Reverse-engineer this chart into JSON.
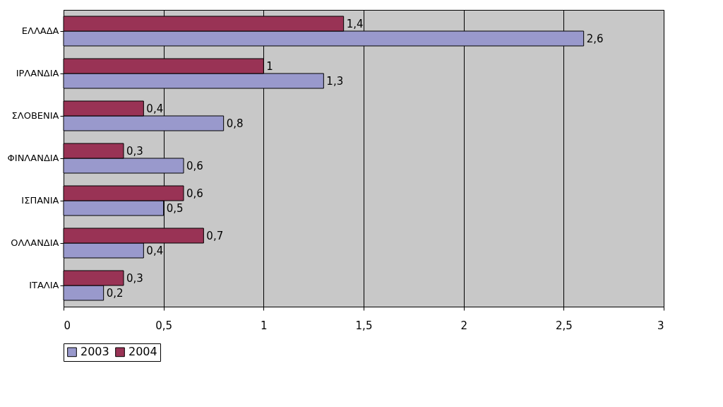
{
  "chart_data": {
    "type": "bar",
    "orientation": "horizontal",
    "categories": [
      "ΕΛΛΑΔΑ",
      "ΙΡΛΑΝΔΙΑ",
      "ΣΛΟΒΕΝΙΑ",
      "ΦΙΝΛΑΝΔΙΑ",
      "ΙΣΠΑΝΙΑ",
      "ΟΛΛΑΝΔΙΑ",
      "ΙΤΑΛΙΑ"
    ],
    "series": [
      {
        "name": "2003",
        "color": "#9999cc",
        "values": [
          2.6,
          1.3,
          0.8,
          0.6,
          0.5,
          0.4,
          0.2
        ],
        "value_labels": [
          "2,6",
          "1,3",
          "0,8",
          "0,6",
          "0,5",
          "0,4",
          "0,2"
        ]
      },
      {
        "name": "2004",
        "color": "#993355",
        "values": [
          1.4,
          1,
          0.4,
          0.3,
          0.6,
          0.7,
          0.3
        ],
        "value_labels": [
          "1,4",
          "1",
          "0,4",
          "0,3",
          "0,6",
          "0,7",
          "0,3"
        ]
      }
    ],
    "xlim": [
      0,
      3
    ],
    "xticks": [
      0,
      {
        "value": 0.5,
        "label": "0,5"
      },
      1,
      {
        "value": 1.5,
        "label": "1,5"
      },
      2,
      {
        "value": 2.5,
        "label": "2,5"
      },
      3
    ],
    "grid": "x",
    "legend": "bottom"
  }
}
